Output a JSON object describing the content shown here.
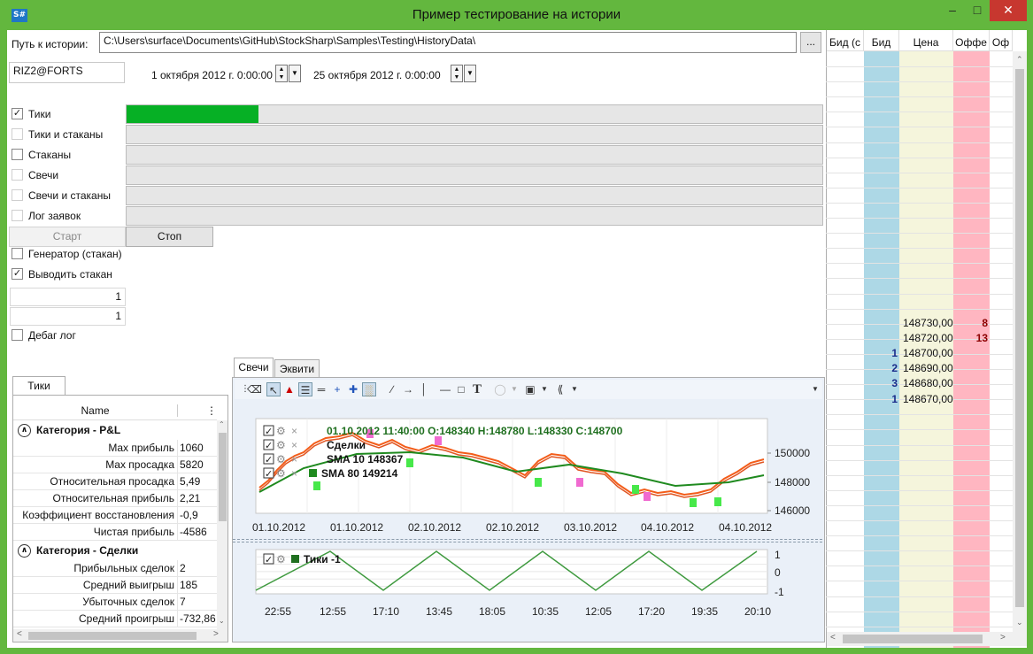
{
  "window": {
    "title": "Пример тестирование на истории",
    "app_icon": "S#"
  },
  "history": {
    "path_label": "Путь к истории:",
    "path_value": "C:\\Users\\surface\\Documents\\GitHub\\StockSharp\\Samples\\Testing\\HistoryData\\",
    "browse_label": "..."
  },
  "security": "RIZ2@FORTS",
  "date_from": "1 октября 2012 г. 0:00:00",
  "date_to": "25 октября 2012 г. 0:00:00",
  "modes": [
    {
      "label": "Тики",
      "checked": true,
      "enabled": true,
      "progress": 0.19
    },
    {
      "label": "Тики и стаканы",
      "checked": false,
      "enabled": false,
      "progress": 0
    },
    {
      "label": "Стаканы",
      "checked": false,
      "enabled": true,
      "progress": 0
    },
    {
      "label": "Свечи",
      "checked": false,
      "enabled": false,
      "progress": 0
    },
    {
      "label": "Свечи и стаканы",
      "checked": false,
      "enabled": false,
      "progress": 0
    },
    {
      "label": "Лог заявок",
      "checked": false,
      "enabled": false,
      "progress": 0
    }
  ],
  "start_label": "Старт",
  "stop_label": "Стоп",
  "generator_label": "Генератор (стакан)",
  "show_depth_label": "Выводить стакан",
  "num_a": "1",
  "num_b": "1",
  "debug_label": "Дебаг лог",
  "stats": {
    "tab": "Тики",
    "header": "Name",
    "categories": [
      {
        "title": "Категория - P&L",
        "rows": [
          {
            "k": "Max прибыль",
            "v": "1060"
          },
          {
            "k": "Max просадка",
            "v": "5820"
          },
          {
            "k": "Относительная просадка",
            "v": "5,49"
          },
          {
            "k": "Относительная прибыль",
            "v": "2,21"
          },
          {
            "k": "Коэффициент восстановления",
            "v": "-0,9"
          },
          {
            "k": "Чистая прибыль",
            "v": "-4586"
          }
        ]
      },
      {
        "title": "Категория - Сделки",
        "rows": [
          {
            "k": "Прибыльных сделок",
            "v": "2"
          },
          {
            "k": "Средний выигрыш",
            "v": "185"
          },
          {
            "k": "Убыточных сделок",
            "v": "7"
          },
          {
            "k": "Средний проигрыш",
            "v": "-732,86"
          }
        ]
      }
    ]
  },
  "chart_tabs": [
    "Свечи",
    "Эквити"
  ],
  "chart": {
    "legend_candle": "01.10.2012 11:40:00 O:148340 H:148780 L:148330 C:148700",
    "legend_trades": "Сделки",
    "legend_sma10": "SMA 10  148367",
    "legend_sma80": "SMA 80  149214",
    "legend_ticks": "Тики  -1",
    "y_ticks": [
      "150000",
      "148000",
      "146000"
    ],
    "x_ticks": [
      "01.10.2012",
      "01.10.2012",
      "02.10.2012",
      "02.10.2012",
      "03.10.2012",
      "04.10.2012",
      "04.10.2012"
    ],
    "tick_y": [
      "1",
      "0",
      "-1"
    ],
    "tick_x": [
      "22:55",
      "12:55",
      "17:10",
      "13:45",
      "18:05",
      "10:35",
      "12:05",
      "17:20",
      "19:35",
      "20:10"
    ],
    "colors": {
      "price": "#f35d1a",
      "sma10": "#e05522",
      "sma80": "#1f8a1f",
      "buy": "#47e84a",
      "sell": "#f06ad0"
    }
  },
  "orderbook": {
    "headers": [
      "Бид (с",
      "Бид",
      "Цена",
      "Оффе",
      "Оф"
    ],
    "rows": [
      {
        "price": "148730,00",
        "bid": "",
        "ask": "8"
      },
      {
        "price": "148720,00",
        "bid": "",
        "ask": "13"
      },
      {
        "price": "148700,00",
        "bid": "1",
        "ask": ""
      },
      {
        "price": "148690,00",
        "bid": "2",
        "ask": ""
      },
      {
        "price": "148680,00",
        "bid": "3",
        "ask": ""
      },
      {
        "price": "148670,00",
        "bid": "1",
        "ask": ""
      }
    ]
  }
}
